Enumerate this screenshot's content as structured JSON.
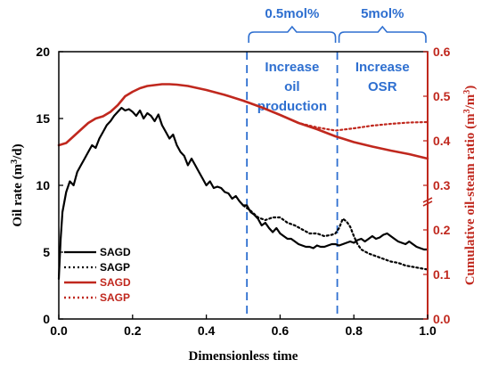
{
  "chart_data": {
    "type": "line",
    "xlabel": "Dimensionless time",
    "ylabel_left": "Oil rate (m3/d)",
    "ylabel_right": "Cumulative oil-steam ratio (m3/m3)",
    "xlim": [
      0,
      1.0
    ],
    "ylim_left": [
      0,
      20
    ],
    "ylim_right": [
      0,
      0.6
    ],
    "xticks": [
      "0.0",
      "0.2",
      "0.4",
      "0.6",
      "0.8",
      "1.0"
    ],
    "yticks_left": [
      "0",
      "5",
      "10",
      "15",
      "20"
    ],
    "yticks_right": [
      "0.0",
      "0.1",
      "0.2",
      "0.3",
      "0.4",
      "0.5",
      "0.6"
    ],
    "grid": false,
    "legend_position": "bottom-left",
    "colors": {
      "oil_rate": "#000000",
      "osr": "#c0281e",
      "annotation": "#2e6fd0"
    },
    "zones": [
      {
        "bracket_label": "0.5mol%",
        "text_lines": [
          "Increase",
          "oil",
          "production"
        ],
        "x_from": 0.51,
        "x_to": 0.755
      },
      {
        "bracket_label": "5mol%",
        "text_lines": [
          "Increase",
          "OSR"
        ],
        "x_from": 0.755,
        "x_to": 1.0
      }
    ],
    "series": [
      {
        "name": "SAGD",
        "axis": "left",
        "style": "solid",
        "x": [
          0.0,
          0.005,
          0.01,
          0.02,
          0.03,
          0.04,
          0.05,
          0.06,
          0.07,
          0.08,
          0.09,
          0.1,
          0.11,
          0.12,
          0.13,
          0.14,
          0.15,
          0.16,
          0.17,
          0.18,
          0.19,
          0.2,
          0.21,
          0.22,
          0.23,
          0.24,
          0.25,
          0.26,
          0.27,
          0.28,
          0.29,
          0.3,
          0.31,
          0.32,
          0.33,
          0.34,
          0.35,
          0.36,
          0.37,
          0.38,
          0.39,
          0.4,
          0.41,
          0.42,
          0.43,
          0.44,
          0.45,
          0.46,
          0.47,
          0.48,
          0.49,
          0.5,
          0.51,
          0.52,
          0.53,
          0.54,
          0.55,
          0.56,
          0.57,
          0.58,
          0.59,
          0.6,
          0.61,
          0.62,
          0.63,
          0.64,
          0.65,
          0.66,
          0.67,
          0.68,
          0.69,
          0.7,
          0.71,
          0.72,
          0.73,
          0.74,
          0.75,
          0.76,
          0.77,
          0.78,
          0.79,
          0.8,
          0.81,
          0.82,
          0.83,
          0.84,
          0.85,
          0.86,
          0.87,
          0.88,
          0.89,
          0.9,
          0.91,
          0.92,
          0.93,
          0.94,
          0.95,
          0.96,
          0.97,
          0.98,
          0.99,
          1.0
        ],
        "y": [
          3.0,
          6.0,
          8.0,
          9.5,
          10.3,
          10.0,
          11.0,
          11.5,
          12.0,
          12.5,
          13.0,
          12.8,
          13.5,
          14.0,
          14.5,
          14.8,
          15.2,
          15.5,
          15.8,
          15.6,
          15.7,
          15.5,
          15.2,
          15.6,
          15.0,
          15.4,
          15.2,
          14.8,
          15.3,
          14.5,
          14.0,
          13.5,
          13.8,
          13.0,
          12.5,
          12.2,
          11.5,
          12.0,
          11.5,
          11.0,
          10.5,
          10.0,
          10.3,
          9.8,
          9.9,
          9.8,
          9.5,
          9.4,
          9.0,
          9.2,
          8.8,
          8.5,
          8.5,
          8.0,
          7.8,
          7.5,
          7.0,
          7.2,
          6.8,
          6.5,
          6.8,
          6.4,
          6.2,
          6.0,
          6.0,
          5.8,
          5.6,
          5.5,
          5.4,
          5.4,
          5.3,
          5.5,
          5.4,
          5.4,
          5.5,
          5.6,
          5.6,
          5.5,
          5.6,
          5.7,
          5.8,
          5.7,
          5.9,
          6.0,
          5.8,
          6.0,
          6.2,
          6.0,
          6.1,
          6.3,
          6.4,
          6.2,
          6.0,
          5.8,
          5.7,
          5.6,
          5.8,
          5.6,
          5.4,
          5.3,
          5.2,
          5.2
        ]
      },
      {
        "name": "SAGP",
        "axis": "left",
        "style": "dotted",
        "x": [
          0.5,
          0.52,
          0.54,
          0.56,
          0.58,
          0.6,
          0.62,
          0.64,
          0.66,
          0.68,
          0.7,
          0.72,
          0.74,
          0.75,
          0.76,
          0.77,
          0.78,
          0.79,
          0.8,
          0.81,
          0.82,
          0.84,
          0.86,
          0.88,
          0.9,
          0.92,
          0.94,
          0.96,
          0.98,
          1.0
        ],
        "y": [
          8.5,
          8.1,
          7.6,
          7.4,
          7.6,
          7.6,
          7.2,
          7.0,
          6.7,
          6.4,
          6.4,
          6.2,
          6.3,
          6.4,
          6.8,
          7.5,
          7.3,
          6.9,
          6.2,
          5.6,
          5.2,
          4.9,
          4.7,
          4.5,
          4.3,
          4.2,
          4.0,
          3.9,
          3.8,
          3.7
        ]
      },
      {
        "name": "SAGD",
        "axis": "right",
        "style": "solid",
        "x": [
          0.0,
          0.02,
          0.04,
          0.06,
          0.08,
          0.1,
          0.12,
          0.14,
          0.16,
          0.18,
          0.2,
          0.22,
          0.24,
          0.26,
          0.28,
          0.3,
          0.32,
          0.35,
          0.4,
          0.45,
          0.5,
          0.55,
          0.6,
          0.65,
          0.7,
          0.75,
          0.8,
          0.85,
          0.9,
          0.95,
          1.0
        ],
        "y": [
          0.39,
          0.395,
          0.41,
          0.425,
          0.44,
          0.45,
          0.455,
          0.465,
          0.48,
          0.5,
          0.51,
          0.518,
          0.523,
          0.525,
          0.527,
          0.527,
          0.526,
          0.523,
          0.514,
          0.503,
          0.49,
          0.475,
          0.458,
          0.44,
          0.426,
          0.41,
          0.397,
          0.387,
          0.378,
          0.37,
          0.36
        ]
      },
      {
        "name": "SAGP",
        "axis": "right",
        "style": "dotted",
        "x": [
          0.5,
          0.55,
          0.6,
          0.65,
          0.7,
          0.75,
          0.8,
          0.85,
          0.9,
          0.95,
          1.0
        ],
        "y": [
          0.49,
          0.475,
          0.458,
          0.44,
          0.43,
          0.423,
          0.428,
          0.434,
          0.438,
          0.441,
          0.442
        ]
      }
    ]
  }
}
